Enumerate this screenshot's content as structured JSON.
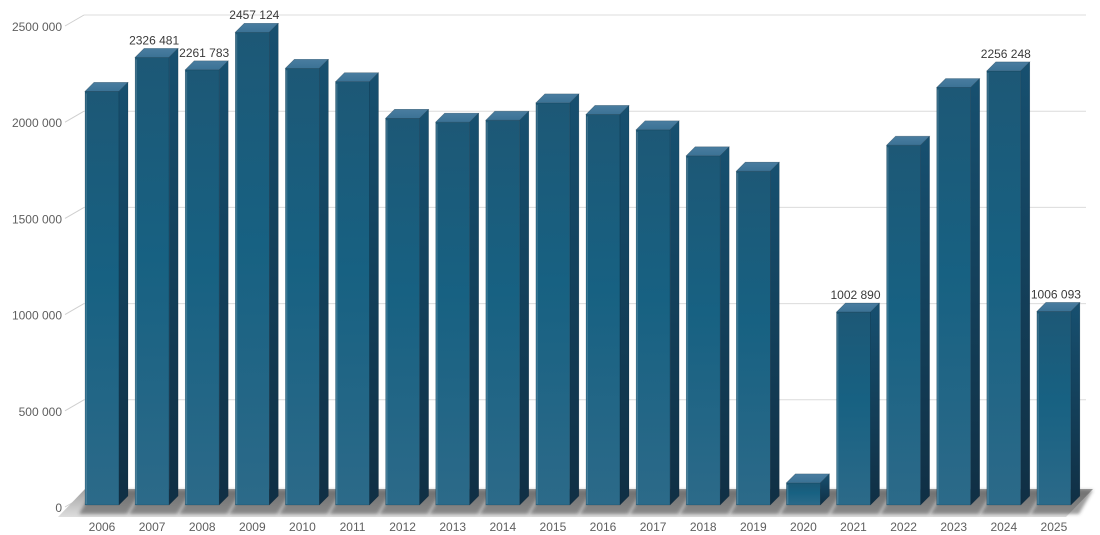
{
  "chart_data": {
    "type": "bar",
    "projection": "3d",
    "legend": "none",
    "grid": "horizontal",
    "ylim": [
      0,
      2500000
    ],
    "categories": [
      "2006",
      "2007",
      "2008",
      "2009",
      "2010",
      "2011",
      "2012",
      "2013",
      "2014",
      "2015",
      "2016",
      "2017",
      "2018",
      "2019",
      "2020",
      "2021",
      "2022",
      "2023",
      "2024",
      "2025"
    ],
    "values": [
      2150000,
      2326481,
      2261783,
      2457124,
      2270000,
      2200000,
      2010000,
      1990000,
      2000000,
      2090000,
      2030000,
      1950000,
      1815000,
      1735000,
      115000,
      1002890,
      1870000,
      2170000,
      2256248,
      1006093
    ],
    "bar_labels": [
      null,
      "2326 481",
      "2261 783",
      "2457 124",
      null,
      null,
      null,
      null,
      null,
      null,
      null,
      null,
      null,
      null,
      null,
      "1002 890",
      null,
      null,
      "2256 248",
      "1006 093"
    ],
    "y_ticks": [
      {
        "value": 0,
        "label": "0"
      },
      {
        "value": 500000,
        "label": "500 000"
      },
      {
        "value": 1000000,
        "label": "1000 000"
      },
      {
        "value": 1500000,
        "label": "1500 000"
      },
      {
        "value": 2000000,
        "label": "2000 000"
      },
      {
        "value": 2500000,
        "label": "2500 000"
      }
    ],
    "colors": {
      "background": "#ffffff",
      "bar_front_top": "#1d5876",
      "bar_front_mid": "#176182",
      "bar_front_bottom": "#2c6a89",
      "bar_side_top": "#175070",
      "bar_side_bottom": "#102f44",
      "bar_top_face_light": "#4a7da0",
      "bar_top_face_dark": "#3b7295",
      "floor_back": "#a0a0a0",
      "floor_front": "#dedede",
      "bar_shadow": "rgba(60,60,60,0.5)",
      "gridline": "#dcdcdc",
      "axis_label": "#5f5f5f",
      "data_label": "#3a3a3a"
    }
  }
}
